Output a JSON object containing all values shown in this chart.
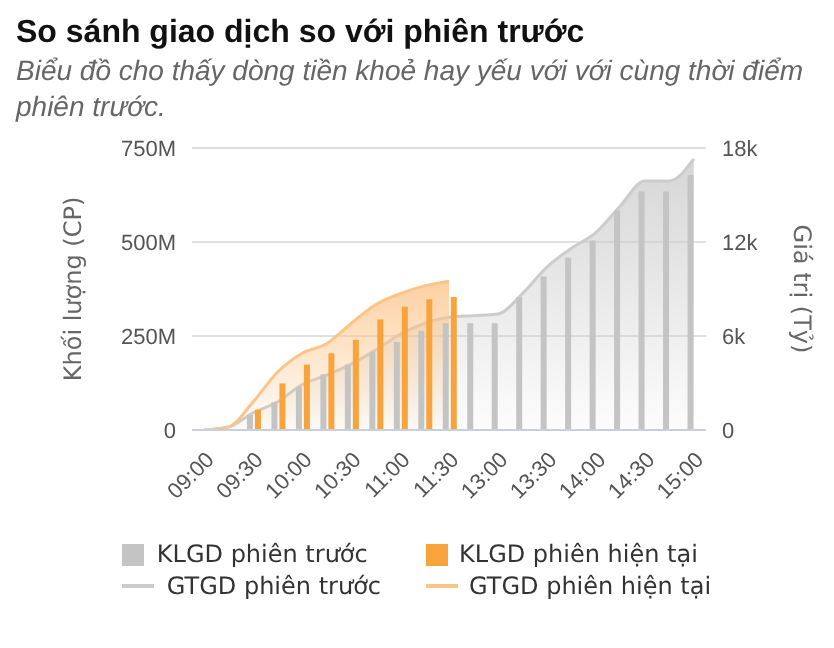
{
  "chart_data": {
    "type": "bar",
    "title": "So sánh giao dịch so với phiên trước",
    "subtitle": "Biểu đồ cho thấy dòng tiền khoẻ hay yếu với với cùng thời điểm phiên trước.",
    "ylabel": "Khối lượng (CP)",
    "y2label": "Giá trị (Tỷ)",
    "categories": [
      "09:00",
      null,
      "09:30",
      null,
      "10:00",
      null,
      "10:30",
      null,
      "11:00",
      null,
      "11:30",
      null,
      "13:00",
      null,
      "13:30",
      null,
      "14:00",
      null,
      "14:30",
      null,
      "15:00"
    ],
    "series": [
      {
        "name": "KLGD phiên trước",
        "color": "#c4c4c4",
        "values": [
          0,
          3,
          40,
          74,
          114,
          148,
          174,
          208,
          234,
          264,
          284,
          284,
          284,
          354,
          408,
          458,
          504,
          584,
          634,
          634,
          678
        ]
      },
      {
        "name": "KLGD phiên hiện tại",
        "color": "#f9a33c",
        "values": [
          0,
          2,
          54,
          124,
          174,
          204,
          240,
          294,
          328,
          348,
          354,
          null,
          null,
          null,
          null,
          null,
          null,
          null,
          null,
          null,
          null
        ]
      },
      {
        "name": "GTGD phiên trước",
        "type": "area",
        "axis": "y2",
        "color": "#cccccc",
        "values": [
          0,
          200,
          1100,
          1800,
          2900,
          3500,
          4200,
          5100,
          6100,
          6800,
          7200,
          7300,
          7400,
          8700,
          10400,
          11600,
          12600,
          14300,
          15900,
          15900,
          17300
        ]
      },
      {
        "name": "GTGD phiên hiện tại",
        "type": "area",
        "axis": "y2",
        "color": "#fbc58a",
        "values": [
          0,
          200,
          1800,
          3700,
          4900,
          5500,
          6800,
          8000,
          8700,
          9200,
          9500,
          null,
          null,
          null,
          null,
          null,
          null,
          null,
          null,
          null,
          null
        ]
      }
    ],
    "ylim": [
      0,
      750
    ],
    "yticks": [
      {
        "value": 0,
        "label": "0"
      },
      {
        "value": 250,
        "label": "250M"
      },
      {
        "value": 500,
        "label": "500M"
      },
      {
        "value": 750,
        "label": "750M"
      }
    ],
    "y2lim": [
      0,
      18000
    ],
    "y2ticks": [
      {
        "value": 0,
        "label": "0"
      },
      {
        "value": 6000,
        "label": "6k"
      },
      {
        "value": 12000,
        "label": "12k"
      },
      {
        "value": 18000,
        "label": "18k"
      }
    ],
    "grid": "y",
    "legend": "bottom",
    "marker": "none"
  }
}
